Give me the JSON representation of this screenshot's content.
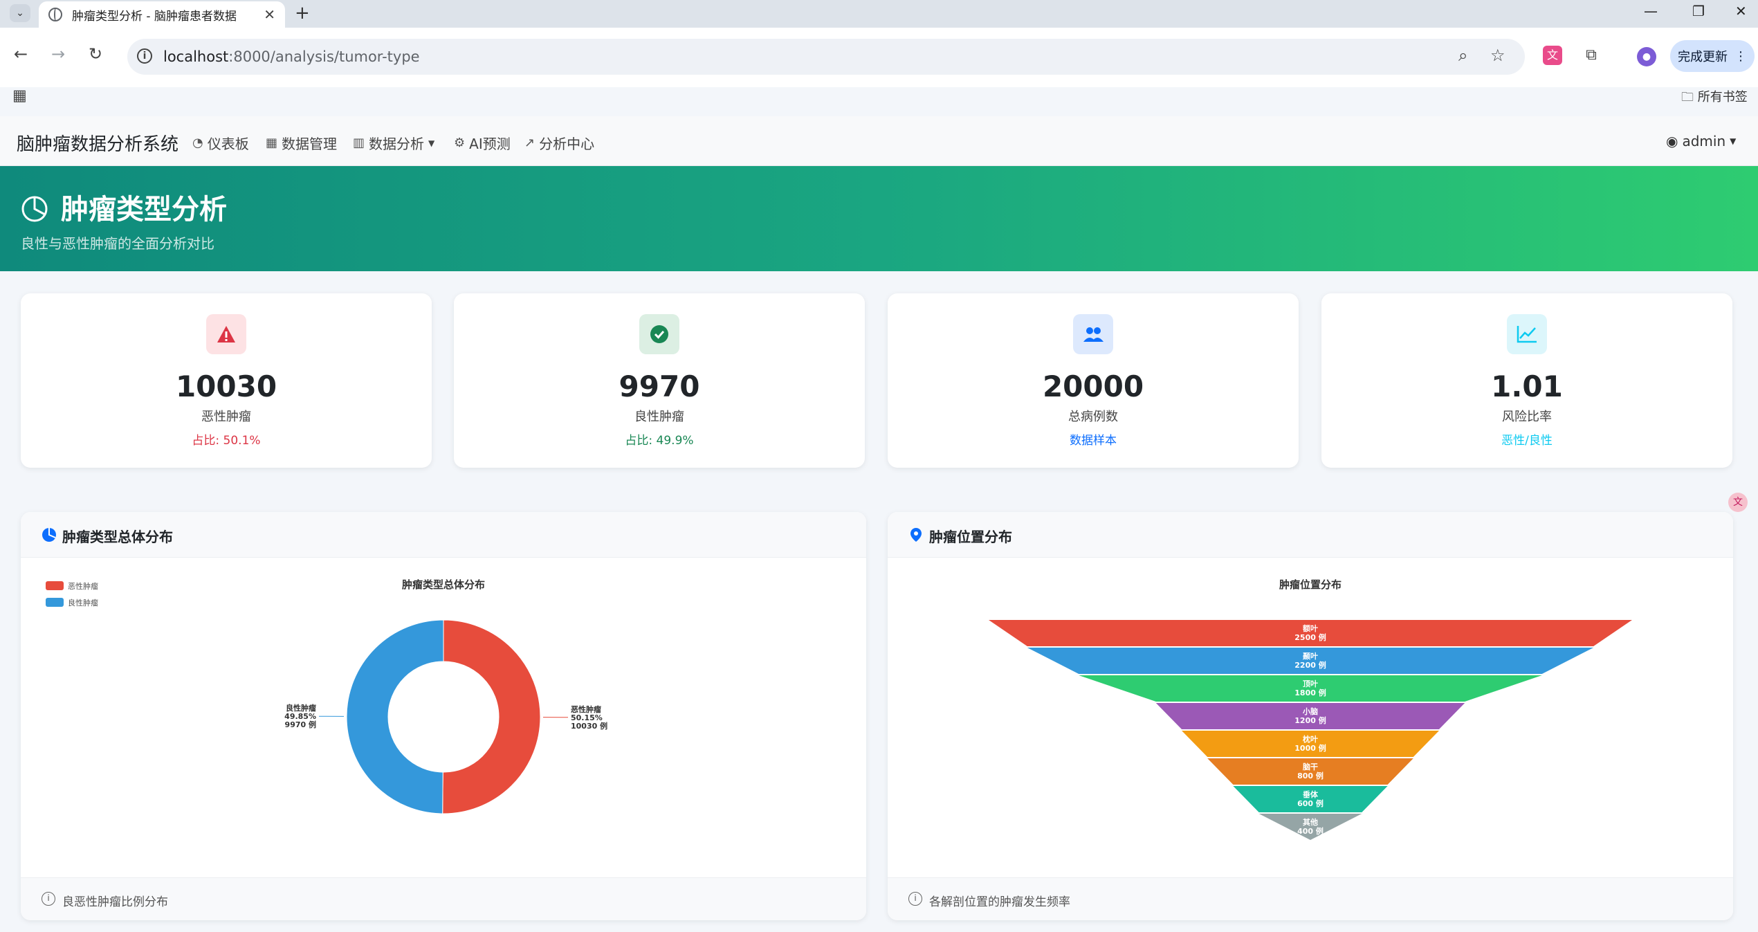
{
  "browser": {
    "tab_title": "肿瘤类型分析 - 脑肿瘤患者数据",
    "url_host": "localhost",
    "url_rest": ":8000/analysis/tumor-type",
    "update_label": "完成更新",
    "bookmarks_label": "所有书签"
  },
  "nav": {
    "brand": "脑肿瘤数据分析系统",
    "items": [
      "仪表板",
      "数据管理",
      "数据分析",
      "AI预测",
      "分析中心"
    ],
    "user": "admin"
  },
  "hero": {
    "title": "肿瘤类型分析",
    "subtitle": "良性与恶性肿瘤的全面分析对比"
  },
  "stats": [
    {
      "value": "10030",
      "label": "恶性肿瘤",
      "note": "占比: 50.1%",
      "color": "#dc3545",
      "icon": "warning-icon"
    },
    {
      "value": "9970",
      "label": "良性肿瘤",
      "note": "占比: 49.9%",
      "color": "#198754",
      "icon": "check-circle-icon"
    },
    {
      "value": "20000",
      "label": "总病例数",
      "note": "数据样本",
      "color": "#0d6efd",
      "icon": "people-icon"
    },
    {
      "value": "1.01",
      "label": "风险比率",
      "note": "恶性/良性",
      "color": "#0dcaf0",
      "icon": "trend-chart-icon"
    }
  ],
  "cards": {
    "type": {
      "title": "肿瘤类型总体分布",
      "footer": "良恶性肿瘤比例分布"
    },
    "location": {
      "title": "肿瘤位置分布",
      "footer": "各解剖位置的肿瘤发生频率"
    }
  },
  "chart_data": [
    {
      "type": "pie",
      "title": "肿瘤类型总体分布",
      "legend_position": "top-left",
      "categories": [
        "恶性肿瘤",
        "良性肿瘤"
      ],
      "values": [
        10030,
        9970
      ],
      "percent_labels": [
        "50.15%",
        "49.85%"
      ],
      "count_labels": [
        "10030 例",
        "9970 例"
      ],
      "colors": [
        "#e74c3c",
        "#3498db"
      ],
      "donut": true
    },
    {
      "type": "funnel",
      "title": "肿瘤位置分布",
      "categories": [
        "额叶",
        "颞叶",
        "顶叶",
        "小脑",
        "枕叶",
        "脑干",
        "垂体",
        "其他"
      ],
      "values": [
        2500,
        2200,
        1800,
        1200,
        1000,
        800,
        600,
        400
      ],
      "count_labels": [
        "2500 例",
        "2200 例",
        "1800 例",
        "1200 例",
        "1000 例",
        "800 例",
        "600 例",
        "400 例"
      ],
      "colors": [
        "#e74c3c",
        "#3498db",
        "#2ecc71",
        "#9b59b6",
        "#f39c12",
        "#e67e22",
        "#1abc9c",
        "#95a5a6"
      ]
    }
  ]
}
